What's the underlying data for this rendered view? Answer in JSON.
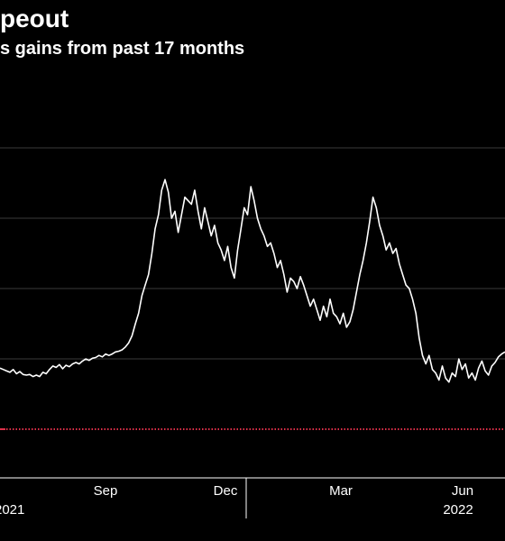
{
  "header": {
    "title": "peout",
    "subtitle": "s gains from past 17 months"
  },
  "colors": {
    "background": "#000000",
    "line": "#ffffff",
    "grid": "#3a3a3a",
    "reference": "#e0304a"
  },
  "chart_data": {
    "type": "line",
    "title": "peout",
    "subtitle": "s gains from past 17 months",
    "xlabel": "",
    "ylabel": "",
    "grid": true,
    "x_tick_labels": [
      "Sep",
      "Dec",
      "Mar",
      "Jun"
    ],
    "year_labels": [
      "2021",
      "2022"
    ],
    "reference_line": {
      "style": "dotted",
      "color": "#e0304a"
    },
    "series": [
      {
        "values": [
          0.42,
          0.4,
          0.38,
          0.36,
          0.4,
          0.34,
          0.37,
          0.33,
          0.32,
          0.33,
          0.3,
          0.32,
          0.3,
          0.36,
          0.34,
          0.4,
          0.45,
          0.43,
          0.47,
          0.41,
          0.46,
          0.44,
          0.48,
          0.5,
          0.48,
          0.52,
          0.55,
          0.53,
          0.56,
          0.57,
          0.6,
          0.58,
          0.62,
          0.6,
          0.62,
          0.65,
          0.66,
          0.68,
          0.72,
          0.78,
          0.88,
          1.05,
          1.2,
          1.45,
          1.6,
          1.75,
          2.05,
          2.4,
          2.6,
          2.95,
          3.1,
          2.92,
          2.55,
          2.65,
          2.35,
          2.6,
          2.85,
          2.8,
          2.75,
          2.95,
          2.65,
          2.4,
          2.7,
          2.5,
          2.3,
          2.45,
          2.2,
          2.1,
          1.95,
          2.15,
          1.85,
          1.7,
          2.1,
          2.4,
          2.7,
          2.6,
          3.0,
          2.8,
          2.55,
          2.4,
          2.3,
          2.15,
          2.2,
          2.05,
          1.85,
          1.95,
          1.75,
          1.5,
          1.7,
          1.65,
          1.55,
          1.72,
          1.6,
          1.45,
          1.3,
          1.4,
          1.25,
          1.1,
          1.3,
          1.15,
          1.4,
          1.2,
          1.15,
          1.05,
          1.2,
          1.0,
          1.08,
          1.25,
          1.5,
          1.75,
          1.95,
          2.2,
          2.5,
          2.85,
          2.7,
          2.45,
          2.3,
          2.1,
          2.2,
          2.05,
          2.12,
          1.9,
          1.75,
          1.6,
          1.55,
          1.4,
          1.2,
          0.85,
          0.6,
          0.48,
          0.6,
          0.4,
          0.35,
          0.25,
          0.45,
          0.28,
          0.22,
          0.35,
          0.3,
          0.55,
          0.4,
          0.48,
          0.28,
          0.35,
          0.25,
          0.42,
          0.52,
          0.38,
          0.32,
          0.45,
          0.5,
          0.58,
          0.62,
          0.65
        ]
      }
    ]
  }
}
